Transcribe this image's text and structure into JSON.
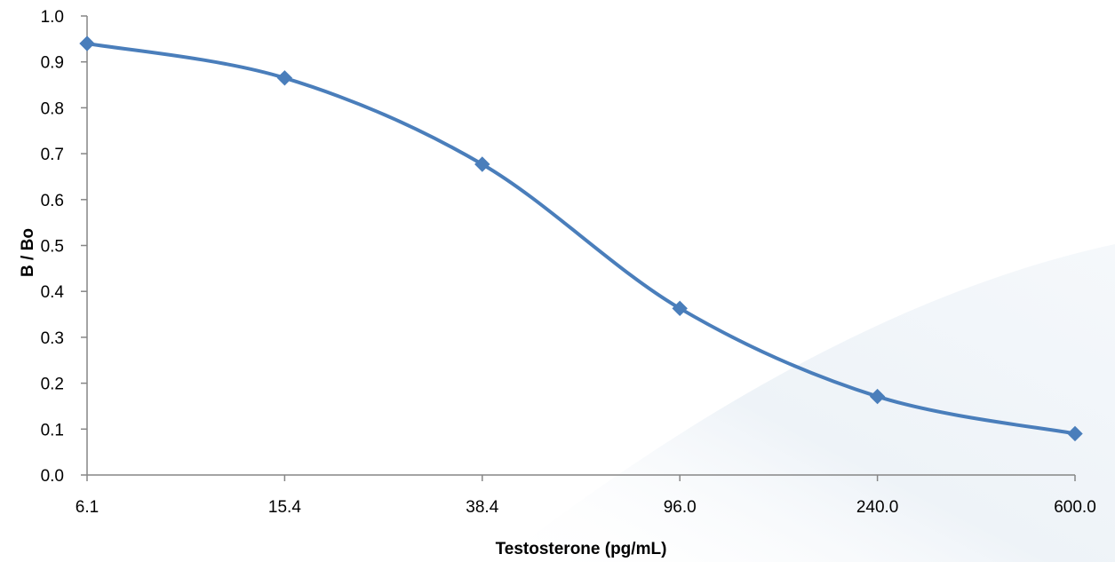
{
  "chart_data": {
    "type": "line",
    "smooth": true,
    "title": "",
    "xlabel": "Testosterone (pg/mL)",
    "ylabel": "B / Bo",
    "categories": [
      "6.1",
      "15.4",
      "38.4",
      "96.0",
      "240.0",
      "600.0"
    ],
    "series": [
      {
        "values": [
          0.94,
          0.865,
          0.677,
          0.363,
          0.171,
          0.09
        ]
      }
    ],
    "ylim": [
      0,
      1.0
    ],
    "yticks": [
      "0.0",
      "0.1",
      "0.2",
      "0.3",
      "0.4",
      "0.5",
      "0.6",
      "0.7",
      "0.8",
      "0.9",
      "1.0"
    ],
    "grid": false,
    "legend": "none",
    "marker": "diamond",
    "colors": {
      "series": "#4a7ebb",
      "axis": "#868686",
      "background": "#ffffff",
      "swoosh": "#eef3f8"
    }
  }
}
